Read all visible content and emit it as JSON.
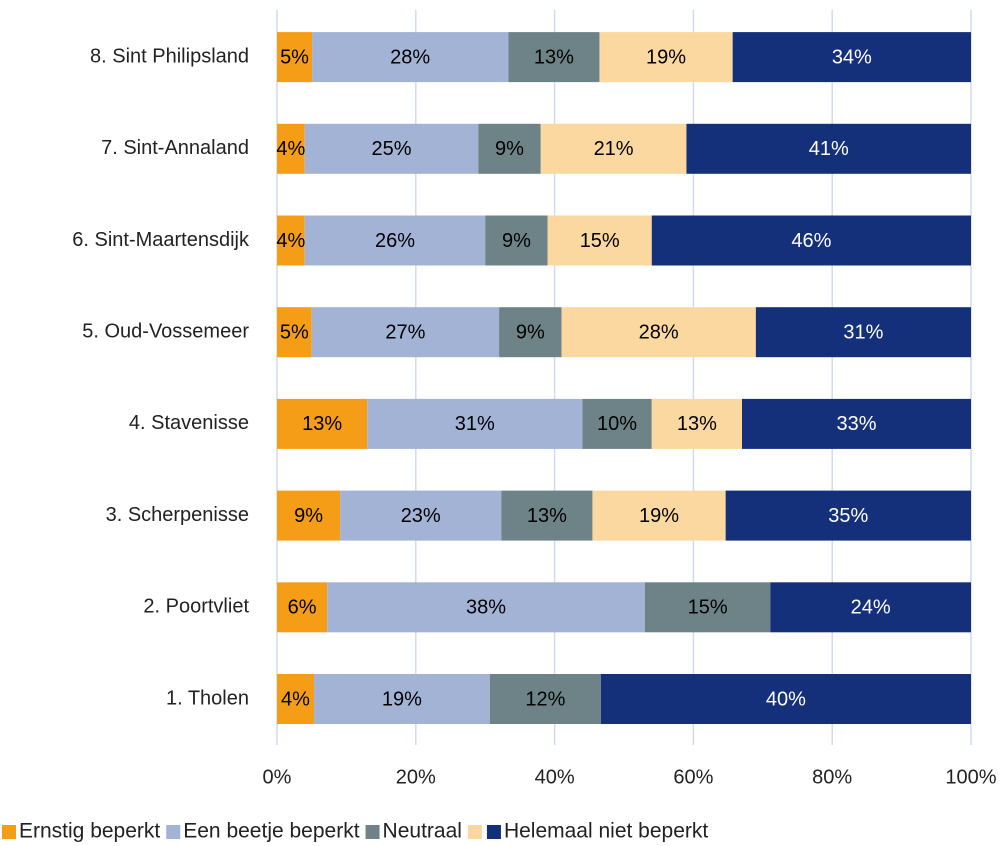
{
  "chart_data": {
    "type": "bar",
    "orientation": "horizontal",
    "stack": "percent",
    "categories": [
      "1. Tholen",
      "2. Poortvliet",
      "3. Scherpenisse",
      "4. Stavenisse",
      "5. Oud-Vossemeer",
      "6. Sint-Maartensdijk",
      "7. Sint-Annaland",
      "8. Sint Philipsland"
    ],
    "series": [
      {
        "name": "Ernstig beperkt",
        "color": "#f59d17",
        "label_color": "#000000",
        "values": [
          4,
          6,
          9,
          13,
          5,
          4,
          4,
          5
        ],
        "value_labels": [
          "4%",
          "6%",
          "9%",
          "13%",
          "5%",
          "4%",
          "4%",
          "5%"
        ]
      },
      {
        "name": "Een beetje beperkt",
        "color": "#a3b3d5",
        "label_color": "#000000",
        "values": [
          19,
          38,
          23,
          31,
          27,
          26,
          25,
          28
        ],
        "value_labels": [
          "19%",
          "38%",
          "23%",
          "31%",
          "27%",
          "26%",
          "25%",
          "28%"
        ]
      },
      {
        "name": "Neutraal",
        "color": "#6e8387",
        "label_color": "#000000",
        "values": [
          12,
          15,
          13,
          10,
          9,
          9,
          9,
          13
        ],
        "value_labels": [
          "12%",
          "15%",
          "13%",
          "10%",
          "9%",
          "9%",
          "9%",
          "13%"
        ]
      },
      {
        "name": null,
        "color": "#fad89f",
        "label_color": "#000000",
        "values": [
          null,
          null,
          19,
          13,
          28,
          15,
          21,
          19
        ],
        "value_labels": [
          null,
          null,
          "19%",
          "13%",
          "28%",
          "15%",
          "21%",
          "19%"
        ]
      },
      {
        "name": "Helemaal niet beperkt",
        "color": "#14307a",
        "label_color": "#ffffff",
        "values": [
          40,
          24,
          35,
          33,
          31,
          46,
          41,
          34
        ],
        "value_labels": [
          "40%",
          "24%",
          "35%",
          "33%",
          "31%",
          "46%",
          "41%",
          "34%"
        ]
      }
    ],
    "xlim": [
      0,
      100
    ],
    "xticks": [
      {
        "value": 0,
        "label": "0%"
      },
      {
        "value": 20,
        "label": "20%"
      },
      {
        "value": 40,
        "label": "40%"
      },
      {
        "value": 60,
        "label": "60%"
      },
      {
        "value": 80,
        "label": "80%"
      },
      {
        "value": 100,
        "label": "100%"
      }
    ],
    "grid": true,
    "legend": "bottom"
  }
}
